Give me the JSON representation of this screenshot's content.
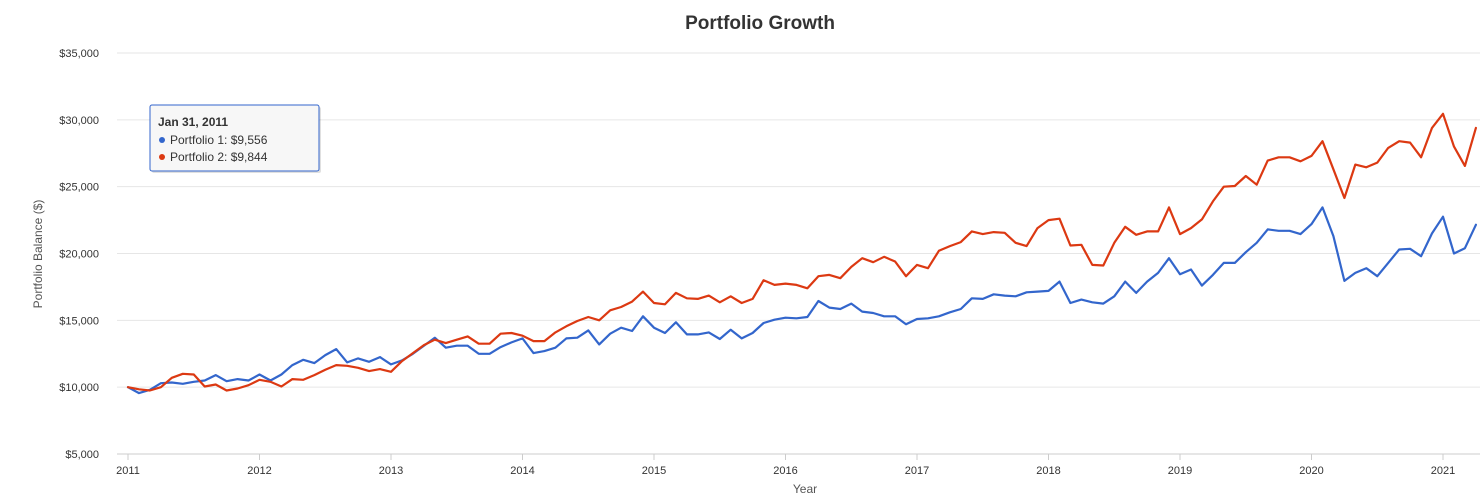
{
  "chart_data": {
    "type": "line",
    "title": "Portfolio Growth",
    "xlabel": "Year",
    "ylabel": "Portfolio Balance ($)",
    "ylim": [
      5000,
      35000
    ],
    "y_ticks": [
      5000,
      10000,
      15000,
      20000,
      25000,
      30000,
      35000
    ],
    "y_tick_labels": [
      "$5,000",
      "$10,000",
      "$15,000",
      "$20,000",
      "$25,000",
      "$30,000",
      "$35,000"
    ],
    "x_tick_labels": [
      "2011",
      "2012",
      "2013",
      "2014",
      "2015",
      "2016",
      "2017",
      "2018",
      "2019",
      "2020",
      "2021"
    ],
    "grid": "horizontal",
    "x_start": "2011-01",
    "x_end": "2021-03",
    "x_frequency": "monthly",
    "series": [
      {
        "name": "Portfolio 1",
        "color": "#3366cc",
        "values": [
          10000,
          9556,
          9800,
          10300,
          10350,
          10250,
          10400,
          10500,
          10900,
          10450,
          10600,
          10500,
          10950,
          10500,
          10950,
          11650,
          12050,
          11800,
          12400,
          12850,
          11850,
          12150,
          11900,
          12250,
          11700,
          12000,
          12500,
          13100,
          13700,
          12950,
          13100,
          13100,
          12500,
          12500,
          13000,
          13350,
          13650,
          12550,
          12700,
          12950,
          13650,
          13700,
          14250,
          13200,
          14000,
          14450,
          14200,
          15300,
          14450,
          14050,
          14850,
          13950,
          13950,
          14100,
          13600,
          14300,
          13650,
          14050,
          14800,
          15050,
          15200,
          15150,
          15250,
          16450,
          15950,
          15850,
          16250,
          15650,
          15550,
          15300,
          15300,
          14700,
          15100,
          15150,
          15300,
          15600,
          15850,
          16650,
          16600,
          16950,
          16850,
          16800,
          17100,
          17150,
          17200,
          17900,
          16300,
          16550,
          16350,
          16250,
          16800,
          17900,
          17050,
          17900,
          18550,
          19650,
          18450,
          18800,
          17600,
          18400,
          19300,
          19300,
          20100,
          20800,
          21800,
          21700,
          21700,
          21450,
          22200,
          23450,
          21300,
          17950,
          18550,
          18900,
          18300,
          19300,
          20300,
          20350,
          19800,
          21500,
          22750,
          20000,
          20400,
          22150
        ]
      },
      {
        "name": "Portfolio 2",
        "color": "#dc3912",
        "values": [
          10000,
          9844,
          9750,
          10000,
          10700,
          11000,
          10950,
          10050,
          10200,
          9750,
          9900,
          10150,
          10550,
          10400,
          10050,
          10600,
          10550,
          10900,
          11300,
          11650,
          11600,
          11450,
          11200,
          11350,
          11150,
          11950,
          12550,
          13150,
          13550,
          13300,
          13550,
          13800,
          13250,
          13250,
          14000,
          14050,
          13850,
          13450,
          13450,
          14100,
          14550,
          14950,
          15250,
          15000,
          15750,
          16000,
          16400,
          17150,
          16300,
          16200,
          17050,
          16650,
          16600,
          16850,
          16350,
          16800,
          16300,
          16600,
          18000,
          17650,
          17750,
          17650,
          17400,
          18300,
          18400,
          18150,
          19000,
          19650,
          19350,
          19750,
          19400,
          18300,
          19150,
          18900,
          20200,
          20550,
          20850,
          21650,
          21450,
          21600,
          21550,
          20800,
          20550,
          21900,
          22500,
          22600,
          20600,
          20650,
          19150,
          19100,
          20800,
          22000,
          21400,
          21650,
          21650,
          23450,
          21450,
          21900,
          22550,
          23900,
          25000,
          25050,
          25800,
          25150,
          26950,
          27200,
          27200,
          26900,
          27300,
          28400,
          26300,
          24150,
          26650,
          26450,
          26800,
          27900,
          28400,
          28300,
          27200,
          29400,
          30450,
          28000,
          26550,
          29400
        ]
      }
    ],
    "tooltip": {
      "title": "Jan 31, 2011",
      "rows": [
        {
          "label": "Portfolio 1: $9,556",
          "color": "#3366cc"
        },
        {
          "label": "Portfolio 2: $9,844",
          "color": "#dc3912"
        }
      ]
    }
  }
}
